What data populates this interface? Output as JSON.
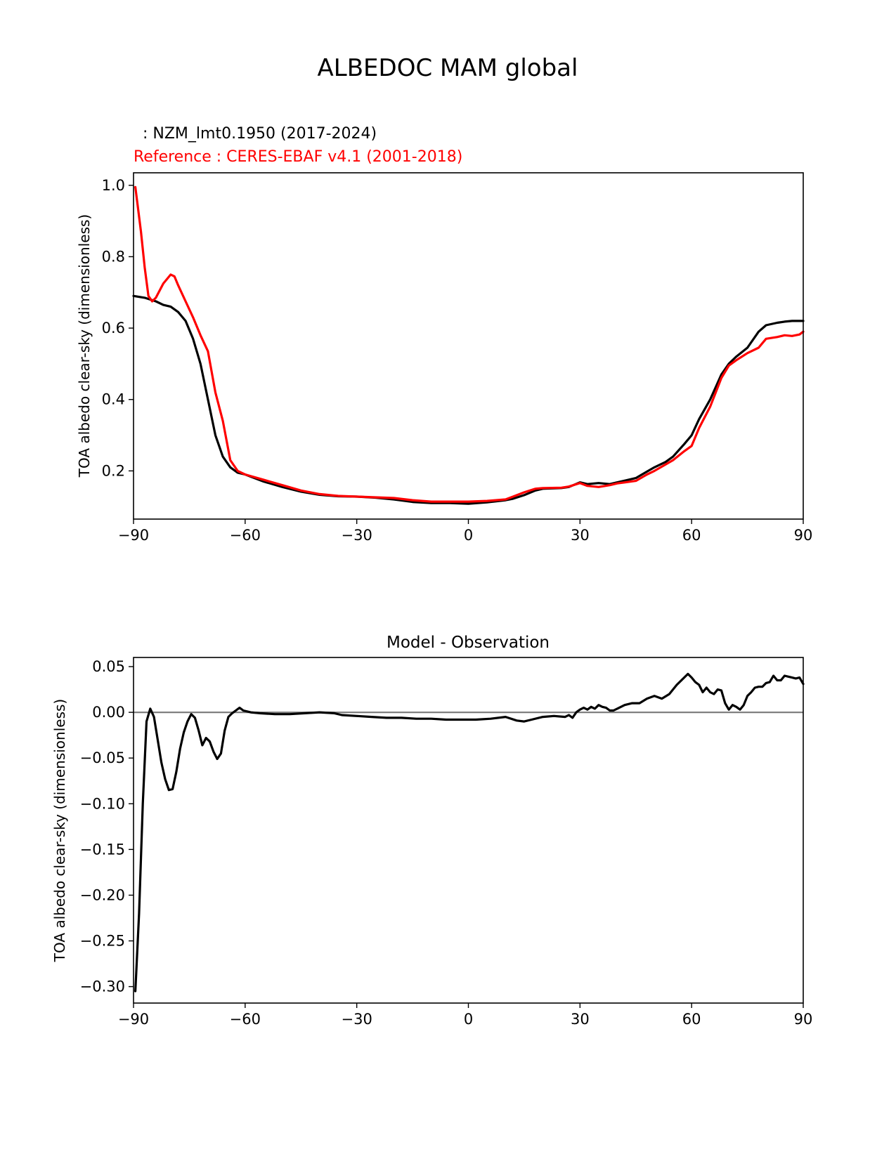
{
  "figure": {
    "title": "ALBEDOC MAM global"
  },
  "colors": {
    "model": "#000000",
    "reference": "#ff0000",
    "zero_line": "#808080",
    "axes": "#000000"
  },
  "chart_data": [
    {
      "type": "line",
      "model_label": " : NZM_lmt0.1950 (2017-2024)",
      "reference_label": "Reference : CERES-EBAF v4.1 (2001-2018)",
      "xlabel": "",
      "ylabel": "TOA albedo clear-sky (dimensionless)",
      "xlim": [
        -90,
        90
      ],
      "ylim": [
        0.065,
        1.035
      ],
      "xticks": [
        -90,
        -60,
        -30,
        0,
        30,
        60,
        90
      ],
      "xtick_labels": [
        "−90",
        "−60",
        "−30",
        "0",
        "30",
        "60",
        "90"
      ],
      "yticks": [
        0.2,
        0.4,
        0.6,
        0.8,
        1.0
      ],
      "ytick_labels": [
        "0.2",
        "0.4",
        "0.6",
        "0.8",
        "1.0"
      ],
      "series": [
        {
          "name": "NZM_lmt0.1950 (2017-2024)",
          "color": "#000000",
          "x": [
            -90,
            -87,
            -84,
            -82,
            -80,
            -78,
            -76,
            -74,
            -72,
            -70,
            -68,
            -66,
            -64,
            -62,
            -60,
            -55,
            -50,
            -45,
            -40,
            -35,
            -30,
            -25,
            -20,
            -15,
            -10,
            -5,
            0,
            5,
            10,
            12,
            15,
            18,
            20,
            25,
            27,
            30,
            32,
            35,
            38,
            40,
            45,
            48,
            50,
            53,
            55,
            58,
            60,
            62,
            65,
            68,
            70,
            72,
            75,
            78,
            80,
            83,
            85,
            87,
            90
          ],
          "y": [
            0.69,
            0.685,
            0.675,
            0.665,
            0.66,
            0.645,
            0.62,
            0.57,
            0.5,
            0.4,
            0.3,
            0.24,
            0.21,
            0.195,
            0.19,
            0.17,
            0.155,
            0.142,
            0.133,
            0.129,
            0.128,
            0.125,
            0.12,
            0.113,
            0.11,
            0.11,
            0.108,
            0.112,
            0.118,
            0.122,
            0.132,
            0.145,
            0.15,
            0.152,
            0.155,
            0.168,
            0.163,
            0.166,
            0.163,
            0.168,
            0.18,
            0.198,
            0.21,
            0.225,
            0.24,
            0.275,
            0.3,
            0.345,
            0.4,
            0.47,
            0.5,
            0.52,
            0.545,
            0.59,
            0.608,
            0.615,
            0.618,
            0.62,
            0.62
          ]
        },
        {
          "name": "CERES-EBAF v4.1 (2001-2018)",
          "color": "#ff0000",
          "x": [
            -89.5,
            -88,
            -87,
            -86,
            -85,
            -84,
            -82,
            -80,
            -79,
            -78,
            -76,
            -74,
            -72,
            -70,
            -68,
            -66,
            -64,
            -62,
            -60,
            -55,
            -50,
            -45,
            -40,
            -35,
            -30,
            -25,
            -20,
            -15,
            -10,
            -5,
            0,
            5,
            10,
            12,
            15,
            18,
            20,
            25,
            27,
            30,
            32,
            35,
            38,
            40,
            45,
            48,
            50,
            53,
            55,
            58,
            60,
            62,
            65,
            68,
            70,
            72,
            75,
            78,
            80,
            83,
            85,
            87,
            89,
            90
          ],
          "y": [
            0.995,
            0.87,
            0.77,
            0.69,
            0.675,
            0.685,
            0.725,
            0.75,
            0.745,
            0.72,
            0.675,
            0.63,
            0.58,
            0.535,
            0.42,
            0.34,
            0.23,
            0.2,
            0.19,
            0.175,
            0.16,
            0.145,
            0.135,
            0.13,
            0.128,
            0.126,
            0.124,
            0.118,
            0.114,
            0.114,
            0.114,
            0.116,
            0.12,
            0.128,
            0.14,
            0.15,
            0.152,
            0.153,
            0.156,
            0.166,
            0.158,
            0.155,
            0.16,
            0.165,
            0.172,
            0.19,
            0.2,
            0.218,
            0.23,
            0.255,
            0.27,
            0.32,
            0.38,
            0.46,
            0.495,
            0.51,
            0.53,
            0.545,
            0.57,
            0.575,
            0.58,
            0.578,
            0.582,
            0.59
          ]
        }
      ]
    },
    {
      "type": "line",
      "title": "Model - Observation",
      "xlabel": "",
      "ylabel": "TOA albedo clear-sky (dimensionless)",
      "xlim": [
        -90,
        90
      ],
      "ylim": [
        -0.318,
        0.06
      ],
      "zero_line": 0,
      "xticks": [
        -90,
        -60,
        -30,
        0,
        30,
        60,
        90
      ],
      "xtick_labels": [
        "−90",
        "−60",
        "−30",
        "0",
        "30",
        "60",
        "90"
      ],
      "yticks": [
        0.05,
        0.0,
        -0.05,
        -0.1,
        -0.15,
        -0.2,
        -0.25,
        -0.3
      ],
      "ytick_labels": [
        "0.05",
        "0.00",
        "−0.05",
        "−0.10",
        "−0.15",
        "−0.20",
        "−0.25",
        "−0.30"
      ],
      "series": [
        {
          "name": "Model - Observation",
          "color": "#000000",
          "x": [
            -89.5,
            -88.5,
            -87.5,
            -86.5,
            -85.5,
            -84.5,
            -83.5,
            -82.5,
            -81.5,
            -80.5,
            -79.5,
            -78.5,
            -77.5,
            -76.5,
            -75.5,
            -74.5,
            -73.5,
            -72.5,
            -71.5,
            -70.5,
            -69.5,
            -68.5,
            -67.5,
            -66.5,
            -65.5,
            -64.5,
            -63.5,
            -62.5,
            -61.5,
            -60.5,
            -59.5,
            -58.5,
            -56,
            -52,
            -48,
            -44,
            -40,
            -36,
            -34,
            -30,
            -26,
            -22,
            -18,
            -14,
            -10,
            -6,
            -2,
            2,
            6,
            10,
            13,
            15,
            17,
            20,
            23,
            26,
            27,
            28,
            29,
            30,
            31,
            32,
            33,
            34,
            35,
            36,
            37,
            38,
            39,
            40,
            42,
            44,
            46,
            48,
            50,
            52,
            54,
            56,
            58,
            59,
            60,
            61,
            62,
            63,
            64,
            65,
            66,
            67,
            68,
            69,
            70,
            71,
            72,
            73,
            74,
            75,
            76,
            77,
            78,
            79,
            80,
            81,
            82,
            83,
            84,
            85,
            86,
            87,
            88,
            89,
            90
          ],
          "y": [
            -0.305,
            -0.22,
            -0.1,
            -0.01,
            0.004,
            -0.005,
            -0.03,
            -0.055,
            -0.073,
            -0.085,
            -0.084,
            -0.065,
            -0.04,
            -0.022,
            -0.01,
            -0.002,
            -0.006,
            -0.02,
            -0.036,
            -0.028,
            -0.032,
            -0.043,
            -0.051,
            -0.045,
            -0.02,
            -0.005,
            -0.001,
            0.002,
            0.005,
            0.002,
            0.001,
            0.0,
            -0.001,
            -0.002,
            -0.002,
            -0.001,
            0.0,
            -0.001,
            -0.003,
            -0.004,
            -0.005,
            -0.006,
            -0.006,
            -0.007,
            -0.007,
            -0.008,
            -0.008,
            -0.008,
            -0.007,
            -0.005,
            -0.009,
            -0.01,
            -0.008,
            -0.005,
            -0.004,
            -0.005,
            -0.003,
            -0.006,
            0.0,
            0.003,
            0.005,
            0.003,
            0.006,
            0.004,
            0.008,
            0.006,
            0.005,
            0.002,
            0.002,
            0.004,
            0.008,
            0.01,
            0.01,
            0.015,
            0.018,
            0.015,
            0.02,
            0.03,
            0.038,
            0.042,
            0.038,
            0.033,
            0.03,
            0.022,
            0.027,
            0.022,
            0.02,
            0.025,
            0.024,
            0.01,
            0.003,
            0.008,
            0.006,
            0.003,
            0.008,
            0.018,
            0.022,
            0.027,
            0.028,
            0.028,
            0.032,
            0.033,
            0.04,
            0.035,
            0.035,
            0.04,
            0.039,
            0.038,
            0.037,
            0.038,
            0.031
          ]
        }
      ]
    }
  ]
}
